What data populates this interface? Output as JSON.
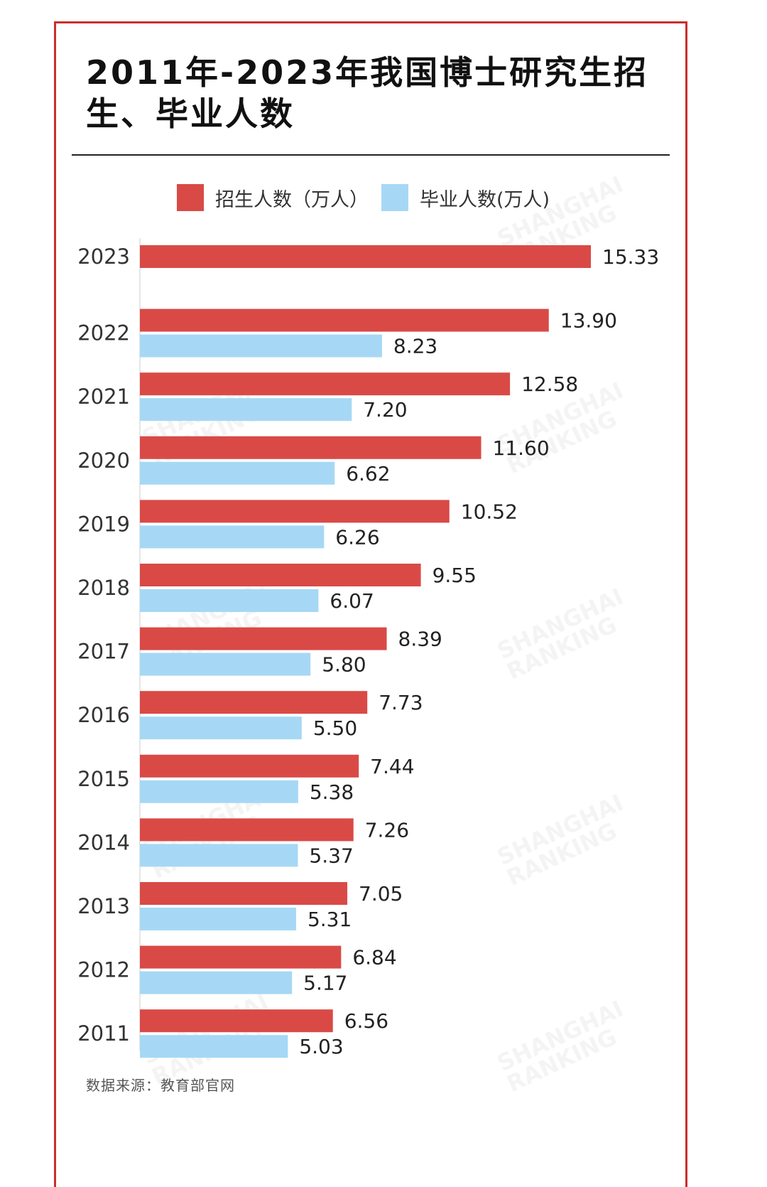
{
  "title": "2011年-2023年我国博士研究生招生、毕业人数",
  "source": "数据来源：教育部官网",
  "watermark": [
    "SHANGHAI",
    "RANKING"
  ],
  "colors": {
    "border": "#c8302c",
    "enroll": "#d94a46",
    "graduate": "#a6d8f5"
  },
  "chart_data": {
    "type": "bar",
    "orientation": "horizontal",
    "categories": [
      "2023",
      "2022",
      "2021",
      "2020",
      "2019",
      "2018",
      "2017",
      "2016",
      "2015",
      "2014",
      "2013",
      "2012",
      "2011"
    ],
    "series": [
      {
        "name": "招生人数（万人）",
        "color": "#d94a46",
        "values": [
          15.33,
          13.9,
          12.58,
          11.6,
          10.52,
          9.55,
          8.39,
          7.73,
          7.44,
          7.26,
          7.05,
          6.84,
          6.56
        ],
        "labels": [
          "15.33",
          "13.90",
          "12.58",
          "11.60",
          "10.52",
          "9.55",
          "8.39",
          "7.73",
          "7.44",
          "7.26",
          "7.05",
          "6.84",
          "6.56"
        ]
      },
      {
        "name": "毕业人数(万人)",
        "color": "#a6d8f5",
        "values": [
          null,
          8.23,
          7.2,
          6.62,
          6.26,
          6.07,
          5.8,
          5.5,
          5.38,
          5.37,
          5.31,
          5.17,
          5.03
        ],
        "labels": [
          "",
          "8.23",
          "7.20",
          "6.62",
          "6.26",
          "6.07",
          "5.80",
          "5.50",
          "5.38",
          "5.37",
          "5.31",
          "5.17",
          "5.03"
        ]
      }
    ],
    "legend": "top",
    "grid": false,
    "xlim": [
      0,
      16
    ]
  }
}
